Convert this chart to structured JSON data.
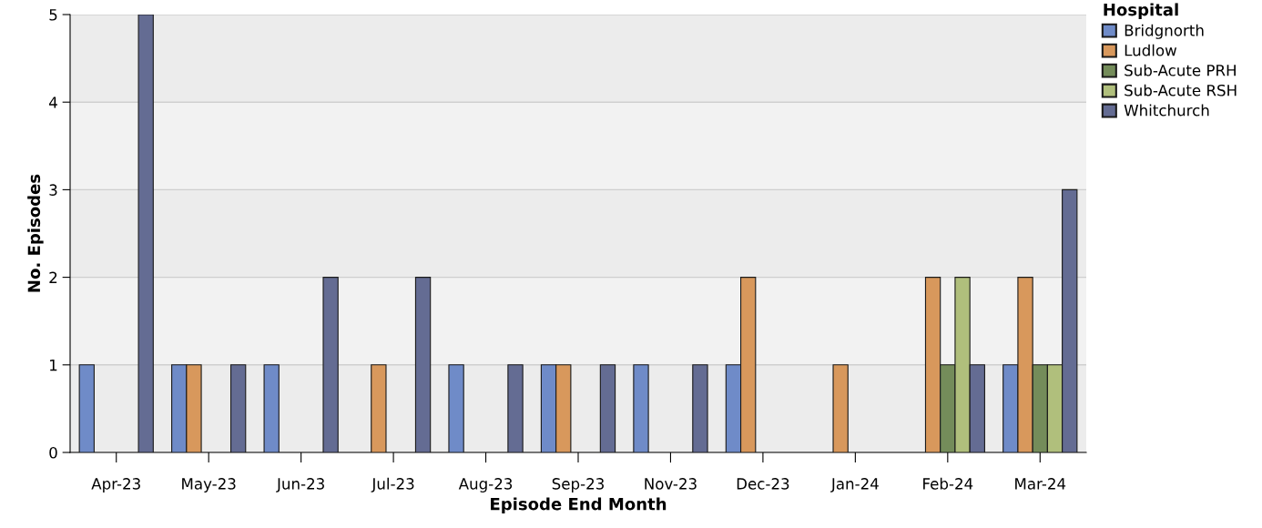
{
  "chart_data": {
    "type": "bar",
    "xlabel": "Episode End Month",
    "ylabel": "No. Episodes",
    "legend_title": "Hospital",
    "categories": [
      "Apr-23",
      "May-23",
      "Jun-23",
      "Jul-23",
      "Aug-23",
      "Sep-23",
      "Nov-23",
      "Dec-23",
      "Jan-24",
      "Feb-24",
      "Mar-24"
    ],
    "series": [
      {
        "name": "Bridgnorth",
        "color": "#6f8bc8",
        "values": [
          1,
          1,
          1,
          0,
          1,
          1,
          1,
          1,
          0,
          0,
          1
        ]
      },
      {
        "name": "Ludlow",
        "color": "#d8985c",
        "values": [
          0,
          1,
          0,
          1,
          0,
          1,
          0,
          2,
          1,
          2,
          2
        ]
      },
      {
        "name": "Sub-Acute PRH",
        "color": "#748c5a",
        "values": [
          0,
          0,
          0,
          0,
          0,
          0,
          0,
          0,
          0,
          1,
          1
        ]
      },
      {
        "name": "Sub-Acute RSH",
        "color": "#b0bf7c",
        "values": [
          0,
          0,
          0,
          0,
          0,
          0,
          0,
          0,
          0,
          2,
          1
        ]
      },
      {
        "name": "Whitchurch",
        "color": "#646c93",
        "values": [
          5,
          1,
          2,
          2,
          1,
          1,
          1,
          0,
          0,
          1,
          3
        ]
      }
    ],
    "ylim": [
      0,
      5
    ],
    "yticks": [
      0,
      1,
      2,
      3,
      4,
      5
    ],
    "grid": "y",
    "legend": "top right"
  }
}
